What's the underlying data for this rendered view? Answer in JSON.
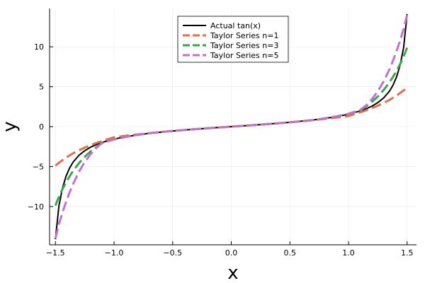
{
  "chart_data": {
    "type": "line",
    "title": "",
    "xlabel": "x",
    "ylabel": "y",
    "xlim": [
      -1.55,
      1.58
    ],
    "ylim": [
      -14.8,
      14.8
    ],
    "xticks": [
      -1.5,
      -1.0,
      -0.5,
      0.0,
      0.5,
      1.0,
      1.5
    ],
    "xtick_labels": [
      "−1.5",
      "−1.0",
      "−0.5",
      "0.0",
      "0.5",
      "1.0",
      "1.5"
    ],
    "yticks": [
      -10,
      -5,
      0,
      5,
      10
    ],
    "ytick_labels": [
      "−10",
      "−5",
      "0",
      "5",
      "10"
    ],
    "grid": true,
    "legend_position": "top-center",
    "x": [
      -1.5,
      -1.47,
      -1.44,
      -1.41,
      -1.38,
      -1.35,
      -1.3,
      -1.25,
      -1.2,
      -1.15,
      -1.1,
      -1.0,
      -0.9,
      -0.8,
      -0.7,
      -0.6,
      -0.5,
      -0.4,
      -0.3,
      -0.2,
      -0.1,
      0.0,
      0.1,
      0.2,
      0.3,
      0.4,
      0.5,
      0.6,
      0.7,
      0.8,
      0.9,
      1.0,
      1.1,
      1.15,
      1.2,
      1.25,
      1.3,
      1.35,
      1.38,
      1.41,
      1.44,
      1.47,
      1.5
    ],
    "series": [
      {
        "name": "Actual tan(x)",
        "color": "#000000",
        "dash": "solid",
        "values": [
          -14.101,
          -9.887,
          -7.6966,
          -6.2281,
          -5.2075,
          -4.4552,
          -3.6021,
          -3.0096,
          -2.572,
          -2.2345,
          -1.9648,
          -1.5574,
          -1.2602,
          -1.0296,
          -0.8423,
          -0.6841,
          -0.5463,
          -0.4228,
          -0.3093,
          -0.2027,
          -0.1003,
          0.0,
          0.1003,
          0.2027,
          0.3093,
          0.4228,
          0.5463,
          0.6841,
          0.8423,
          1.0296,
          1.2602,
          1.5574,
          1.9648,
          2.2345,
          2.572,
          3.0096,
          3.6021,
          4.4552,
          5.2075,
          6.2281,
          7.6966,
          9.887,
          14.101
        ]
      },
      {
        "name": "Taylor Series n=1",
        "color": "#e26f46",
        "dash": "dashed",
        "values": [
          -4.875,
          -4.5288,
          -4.2106,
          -3.8908,
          -3.6113,
          -3.3503,
          -2.9637,
          -2.6276,
          -2.3232,
          -2.0452,
          -1.7975,
          -1.3333,
          -1.143,
          -0.9707,
          -0.8143,
          -0.672,
          -0.5417,
          -0.4213,
          -0.309,
          -0.2027,
          -0.1003,
          0.0,
          0.1003,
          0.2027,
          0.309,
          0.4213,
          0.5417,
          0.672,
          0.8143,
          0.9707,
          1.143,
          1.3333,
          1.7975,
          2.0452,
          2.3232,
          2.6276,
          2.9637,
          3.3503,
          3.6113,
          3.8908,
          4.2106,
          4.5288,
          4.875
        ]
      },
      {
        "name": "Taylor Series n=3",
        "color": "#3da44d",
        "dash": "dashed",
        "values": [
          -9.8813,
          -8.7706,
          -7.8262,
          -6.9913,
          -6.2414,
          -5.5642,
          -4.5902,
          -3.7793,
          -3.1016,
          -2.5303,
          -2.0505,
          -1.6,
          -1.2918,
          -1.0385,
          -0.8277,
          -0.6785,
          -0.5458,
          -0.4228,
          -0.3093,
          -0.2027,
          -0.1003,
          0.0,
          0.1003,
          0.2027,
          0.3093,
          0.4228,
          0.5458,
          0.6785,
          0.8277,
          1.0385,
          1.2918,
          1.6,
          2.0505,
          2.5303,
          3.1016,
          3.7793,
          4.5902,
          5.5642,
          6.2414,
          6.9913,
          7.8262,
          8.7706,
          9.8813
        ]
      },
      {
        "name": "Taylor Series n=5",
        "color": "#c271d2",
        "dash": "dashed",
        "values": [
          -13.99,
          -12.23,
          -10.76,
          -9.46,
          -8.27,
          -7.2,
          -5.67,
          -4.43,
          -3.44,
          -2.65,
          -2.03,
          -1.6,
          -1.2918,
          -1.0385,
          -0.8277,
          -0.6785,
          -0.5458,
          -0.4228,
          -0.3093,
          -0.2027,
          -0.1003,
          0.0,
          0.1003,
          0.2027,
          0.3093,
          0.4228,
          0.5458,
          0.6785,
          0.8277,
          1.0385,
          1.2918,
          1.6,
          2.1,
          2.65,
          3.44,
          4.43,
          5.67,
          7.2,
          8.27,
          9.46,
          10.76,
          12.23,
          13.99
        ]
      }
    ]
  }
}
